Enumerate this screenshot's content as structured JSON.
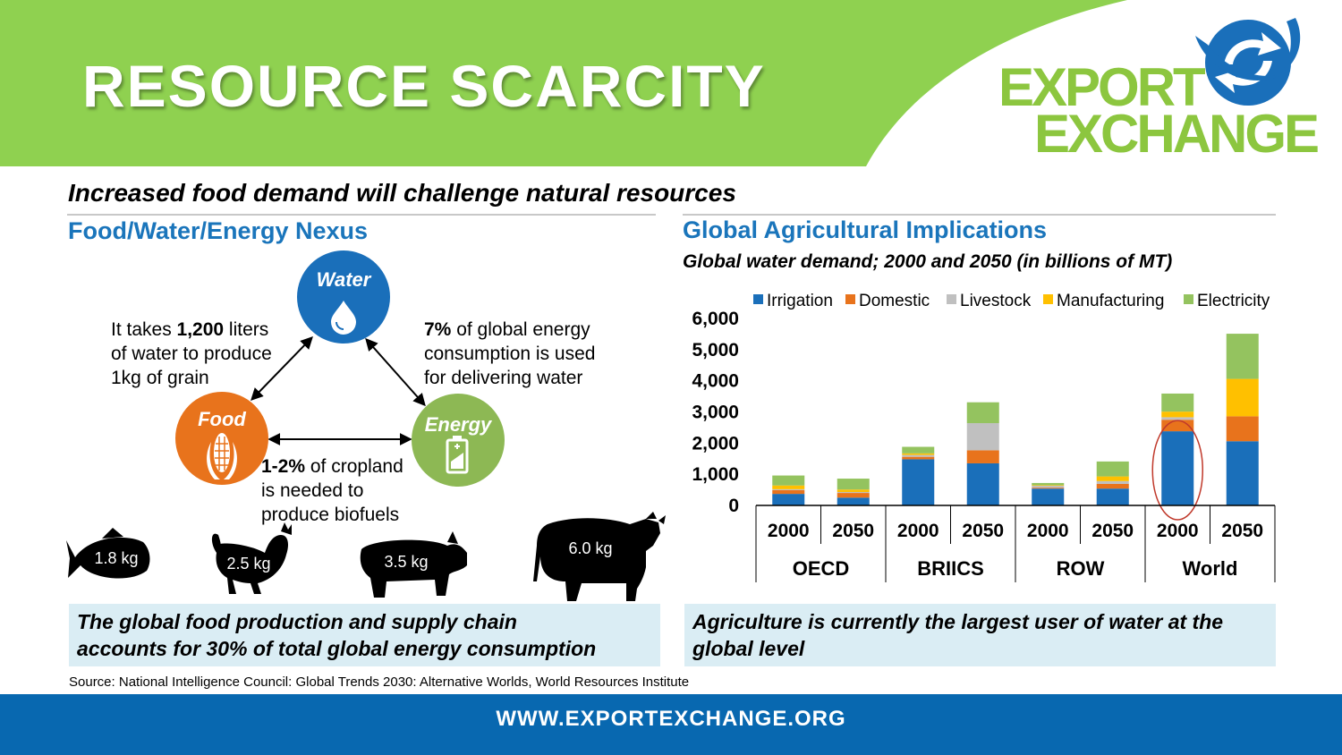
{
  "header": {
    "title": "RESOURCE SCARCITY",
    "logo_line1": "EXPORT",
    "logo_line2": "EXCHANGE",
    "logo_icon": "circular-arrows-icon"
  },
  "subtitle": "Increased food demand will challenge natural resources",
  "left_section": {
    "title": "Food/Water/Energy Nexus",
    "nodes": {
      "water": "Water",
      "food": "Food",
      "energy": "Energy"
    },
    "node_icons": {
      "water": "water-drop-icon",
      "food": "corn-icon",
      "energy": "battery-icon"
    },
    "colors": {
      "water": "#1a6fba",
      "food": "#e8731c",
      "energy": "#8db854"
    },
    "notes": {
      "water_food": {
        "line1_a": "It takes ",
        "line1_b": "1,200",
        "line1_c": " liters",
        "line2": "of water to produce",
        "line3": "1kg of grain"
      },
      "water_energy": {
        "line1_a": "7%",
        "line1_b": " of global energy",
        "line2": "consumption is used",
        "line3": "for delivering water"
      },
      "food_energy": {
        "line1_a": "1-2%",
        "line1_b": " of cropland",
        "line2": "is needed to",
        "line3": "produce biofuels"
      }
    },
    "animals": [
      {
        "icon": "fish-icon",
        "label": "1.8 kg"
      },
      {
        "icon": "chicken-icon",
        "label": "2.5 kg"
      },
      {
        "icon": "pig-icon",
        "label": "3.5 kg"
      },
      {
        "icon": "cow-icon",
        "label": "6.0 kg"
      }
    ],
    "callout": {
      "line1": "The global food production and supply chain",
      "line2": "accounts for 30% of total global energy consumption"
    }
  },
  "right_section": {
    "title": "Global Agricultural Implications",
    "chart_subtitle": "Global water demand; 2000 and 2050 (in billions of MT)",
    "callout": {
      "line1": "Agriculture is currently the largest user of water at the",
      "line2": "global level"
    }
  },
  "chart_data": {
    "type": "bar",
    "stacked": true,
    "title": "Global water demand; 2000 and 2050 (in billions of MT)",
    "groups": [
      "OECD",
      "BRIICS",
      "ROW",
      "World"
    ],
    "categories": [
      "2000",
      "2050",
      "2000",
      "2050",
      "2000",
      "2050",
      "2000",
      "2050"
    ],
    "series": [
      {
        "name": "Irrigation",
        "color": "#1a6fba",
        "values": [
          370,
          250,
          1480,
          1350,
          540,
          540,
          2380,
          2060
        ]
      },
      {
        "name": "Domestic",
        "color": "#e8731c",
        "values": [
          120,
          150,
          80,
          420,
          30,
          150,
          370,
          800
        ]
      },
      {
        "name": "Livestock",
        "color": "#c0c0c0",
        "values": [
          30,
          30,
          60,
          870,
          60,
          90,
          80,
          0
        ]
      },
      {
        "name": "Manufacturing",
        "color": "#ffc000",
        "values": [
          120,
          80,
          50,
          0,
          20,
          150,
          180,
          1200
        ]
      },
      {
        "name": "Electricity",
        "color": "#94c35f",
        "values": [
          320,
          350,
          210,
          670,
          70,
          480,
          580,
          1450
        ]
      }
    ],
    "ylim": [
      0,
      6000
    ],
    "yticks": [
      "6,000",
      "5,000",
      "4,000",
      "3,000",
      "2,000",
      "1,000",
      "0"
    ],
    "legend_position": "top",
    "highlight": {
      "group": "World",
      "category": "2000",
      "series": "Irrigation",
      "shape": "ellipse",
      "color": "#c0392b"
    }
  },
  "source": "Source: National Intelligence Council: Global Trends 2030: Alternative Worlds, World Resources Institute",
  "footer": "WWW.EXPORTEXCHANGE.ORG"
}
